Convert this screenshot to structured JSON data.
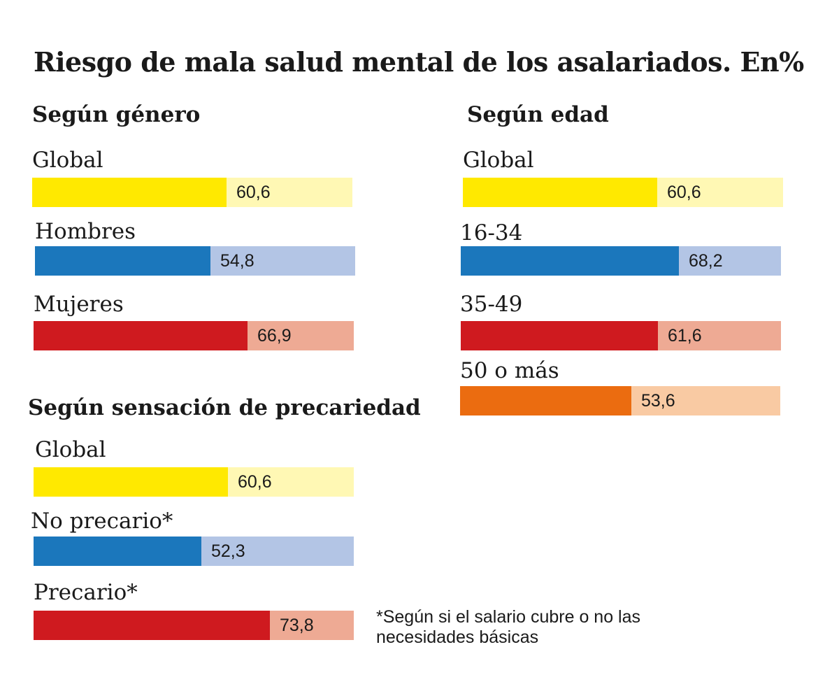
{
  "title": "Riesgo de mala salud mental de los asalariados. En%",
  "footnote": "*Según si el salario cubre o no las necesidades básicas",
  "chart_data": [
    {
      "type": "bar",
      "title": "Según género",
      "categories": [
        "Global",
        "Hombres",
        "Mujeres"
      ],
      "values": [
        60.6,
        54.8,
        66.9
      ],
      "value_labels": [
        "60,6",
        "54,8",
        "66,9"
      ],
      "ylim": [
        0,
        100
      ],
      "bar_colors": [
        "#ffe900",
        "#1b77bc",
        "#cf1a1f"
      ],
      "track_colors": [
        "#fff8b4",
        "#b3c5e5",
        "#eeaa94"
      ]
    },
    {
      "type": "bar",
      "title": "Según edad",
      "categories": [
        "Global",
        "16-34",
        "35-49",
        "50 o más"
      ],
      "values": [
        60.6,
        68.2,
        61.6,
        53.6
      ],
      "value_labels": [
        "60,6",
        "68,2",
        "61,6",
        "53,6"
      ],
      "ylim": [
        0,
        100
      ],
      "bar_colors": [
        "#ffe900",
        "#1b77bc",
        "#cf1a1f",
        "#eb6c10"
      ],
      "track_colors": [
        "#fff8b4",
        "#b3c5e5",
        "#eeaa94",
        "#f9caa3"
      ]
    },
    {
      "type": "bar",
      "title": "Según sensación de precariedad",
      "categories": [
        "Global",
        "No precario*",
        "Precario*"
      ],
      "values": [
        60.6,
        52.3,
        73.8
      ],
      "value_labels": [
        "60,6",
        "52,3",
        "73,8"
      ],
      "ylim": [
        0,
        100
      ],
      "bar_colors": [
        "#ffe900",
        "#1b77bc",
        "#cf1a1f"
      ],
      "track_colors": [
        "#fff8b4",
        "#b3c5e5",
        "#eeaa94"
      ]
    }
  ]
}
